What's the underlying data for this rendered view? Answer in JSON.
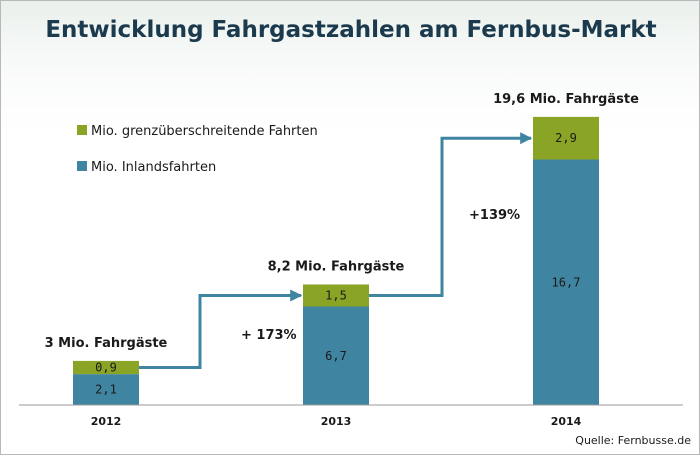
{
  "chart_data": {
    "type": "bar",
    "stacked": true,
    "title": "Entwicklung Fahrgastzahlen am Fernbus-Markt",
    "categories": [
      "2012",
      "2013",
      "2014"
    ],
    "series": [
      {
        "name": "Mio. Inlandsfahrten",
        "values": [
          2.1,
          6.7,
          16.7
        ],
        "labels": [
          "2,1",
          "6,7",
          "16,7"
        ],
        "color": "#3f84a0"
      },
      {
        "name": "Mio. grenzüberschreitende Fahrten",
        "values": [
          0.9,
          1.5,
          2.9
        ],
        "labels": [
          "0,9",
          "1,5",
          "2,9"
        ],
        "color": "#8aa526"
      }
    ],
    "totals": [
      "3 Mio. Fahrgäste",
      "8,2 Mio. Fahrgäste",
      "19,6 Mio. Fahrgäste"
    ],
    "growth_annotations": [
      "+ 173%",
      "+139%"
    ],
    "arrow_color": "#3f84a0",
    "legend_position": "top-left",
    "grid": false,
    "ylim": [
      0,
      20
    ],
    "source": "Quelle: Fernbusse.de"
  }
}
